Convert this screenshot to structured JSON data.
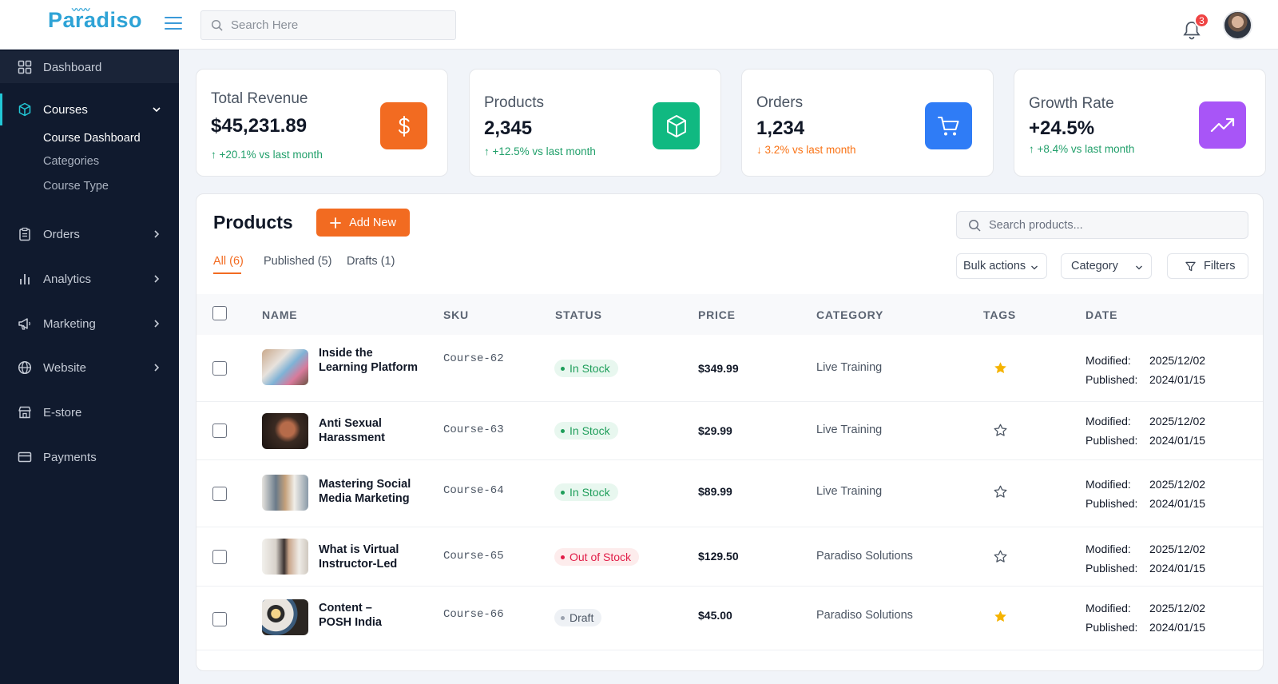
{
  "app": {
    "logo": "Paradiso"
  },
  "topbar": {
    "search_placeholder": "Search Here",
    "notification_count": "3"
  },
  "sidebar": {
    "items": [
      {
        "label": "Dashboard",
        "icon": "grid-icon"
      },
      {
        "label": "Courses",
        "icon": "cube-icon",
        "expanded": true
      },
      {
        "label": "Orders",
        "icon": "clipboard-icon"
      },
      {
        "label": "Analytics",
        "icon": "bar-chart-icon"
      },
      {
        "label": "Marketing",
        "icon": "megaphone-icon"
      },
      {
        "label": "Website",
        "icon": "globe-icon"
      },
      {
        "label": "E-store",
        "icon": "store-icon"
      },
      {
        "label": "Payments",
        "icon": "card-icon"
      }
    ],
    "courses_sub": [
      "Course Dashboard",
      "Categories",
      "Course Type"
    ]
  },
  "stats": [
    {
      "title": "Total Revenue",
      "value": "$45,231.89",
      "change": "↑ +20.1% vs last month",
      "trend": "up",
      "color": "#f26b21",
      "icon": "dollar-icon"
    },
    {
      "title": "Products",
      "value": "2,345",
      "change": "↑ +12.5% vs last month",
      "trend": "up",
      "color": "#10b981",
      "icon": "box-icon"
    },
    {
      "title": "Orders",
      "value": "1,234",
      "change": "↓ 3.2% vs last month",
      "trend": "down",
      "color": "#2f7cf6",
      "icon": "cart-icon"
    },
    {
      "title": "Growth Rate",
      "value": "+24.5%",
      "change": "↑ +8.4% vs last month",
      "trend": "up",
      "color": "#a855f7",
      "icon": "trending-up-icon"
    }
  ],
  "products": {
    "title": "Products",
    "add_label": "Add New",
    "search_placeholder": "Search products...",
    "tabs": [
      "All (6)",
      "Published (5)",
      "Drafts (1)"
    ],
    "bulk_label": "Bulk actions",
    "category_label": "Category",
    "filters_label": "Filters",
    "columns": [
      "NAME",
      "SKU",
      "STATUS",
      "PRICE",
      "CATEGORY",
      "TAGS",
      "DATE"
    ],
    "modified_label": "Modified:",
    "published_label": "Published:",
    "rows": [
      {
        "name": "Inside the Learning Platform",
        "sku": "Course-62",
        "status": "In Stock",
        "status_type": "in",
        "price": "$349.99",
        "category": "Live Training",
        "starred": true,
        "modified": "2025/12/02",
        "published": "2024/01/15"
      },
      {
        "name": "Anti Sexual Harassment",
        "sku": "Course-63",
        "status": "In Stock",
        "status_type": "in",
        "price": "$29.99",
        "category": "Live Training",
        "starred": false,
        "modified": "2025/12/02",
        "published": "2024/01/15"
      },
      {
        "name": "Mastering Social Media Marketing",
        "sku": "Course-64",
        "status": "In Stock",
        "status_type": "in",
        "price": "$89.99",
        "category": "Live Training",
        "starred": false,
        "modified": "2025/12/02",
        "published": "2024/01/15"
      },
      {
        "name": "What is Virtual Instructor-Led",
        "sku": "Course-65",
        "status": "Out of Stock",
        "status_type": "out",
        "price": "$129.50",
        "category": "Paradiso Solutions",
        "starred": false,
        "modified": "2025/12/02",
        "published": "2024/01/15"
      },
      {
        "name": "Content – POSH India",
        "sku": "Course-66",
        "status": "Draft",
        "status_type": "draft",
        "price": "$45.00",
        "category": "Paradiso Solutions",
        "starred": true,
        "modified": "2025/12/02",
        "published": "2024/01/15"
      }
    ]
  }
}
